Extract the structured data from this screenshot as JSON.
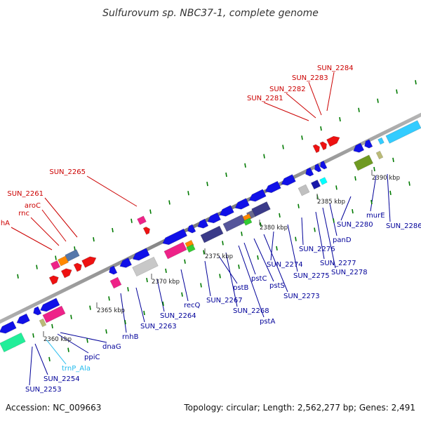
{
  "title": "Sulfurovum sp. NBC37-1, complete genome",
  "footer": {
    "accession": "Accession: NC_009663",
    "topology": "Topology: circular; Length: 2,562,277 bp; Genes: 2,491"
  },
  "colors": {
    "backbone": "#8a8a8a",
    "top_labels": "#cc0000",
    "bottom_labels": "#000099",
    "trna_label": "#22bbee",
    "tick_marks": "#007a00"
  },
  "scale_ticks": [
    "2360 kbp",
    "2365 kbp",
    "2370 kbp",
    "2375 kbp",
    "2380 kbp",
    "2385 kbp",
    "2390 kbp"
  ],
  "top_genes": [
    "rnhA",
    "rnc",
    "aroC",
    "SUN_2261",
    "SUN_2265",
    "SUN_2281",
    "SUN_2282",
    "SUN_2283",
    "SUN_2284"
  ],
  "bottom_genes": [
    "SUN_2253",
    "SUN_2254",
    "trnP_Ala",
    "ppiC",
    "dnaG",
    "rnhB",
    "SUN_2263",
    "SUN_2264",
    "recQ",
    "SUN_2267",
    "pstB",
    "SUN_2268",
    "pstA",
    "pstC",
    "pstS",
    "SUN_2273",
    "SUN_2274",
    "SUN_2275",
    "SUN_2276",
    "SUN_2277",
    "SUN_2278",
    "panD",
    "SUN_2280",
    "murE",
    "SUN_2286"
  ]
}
